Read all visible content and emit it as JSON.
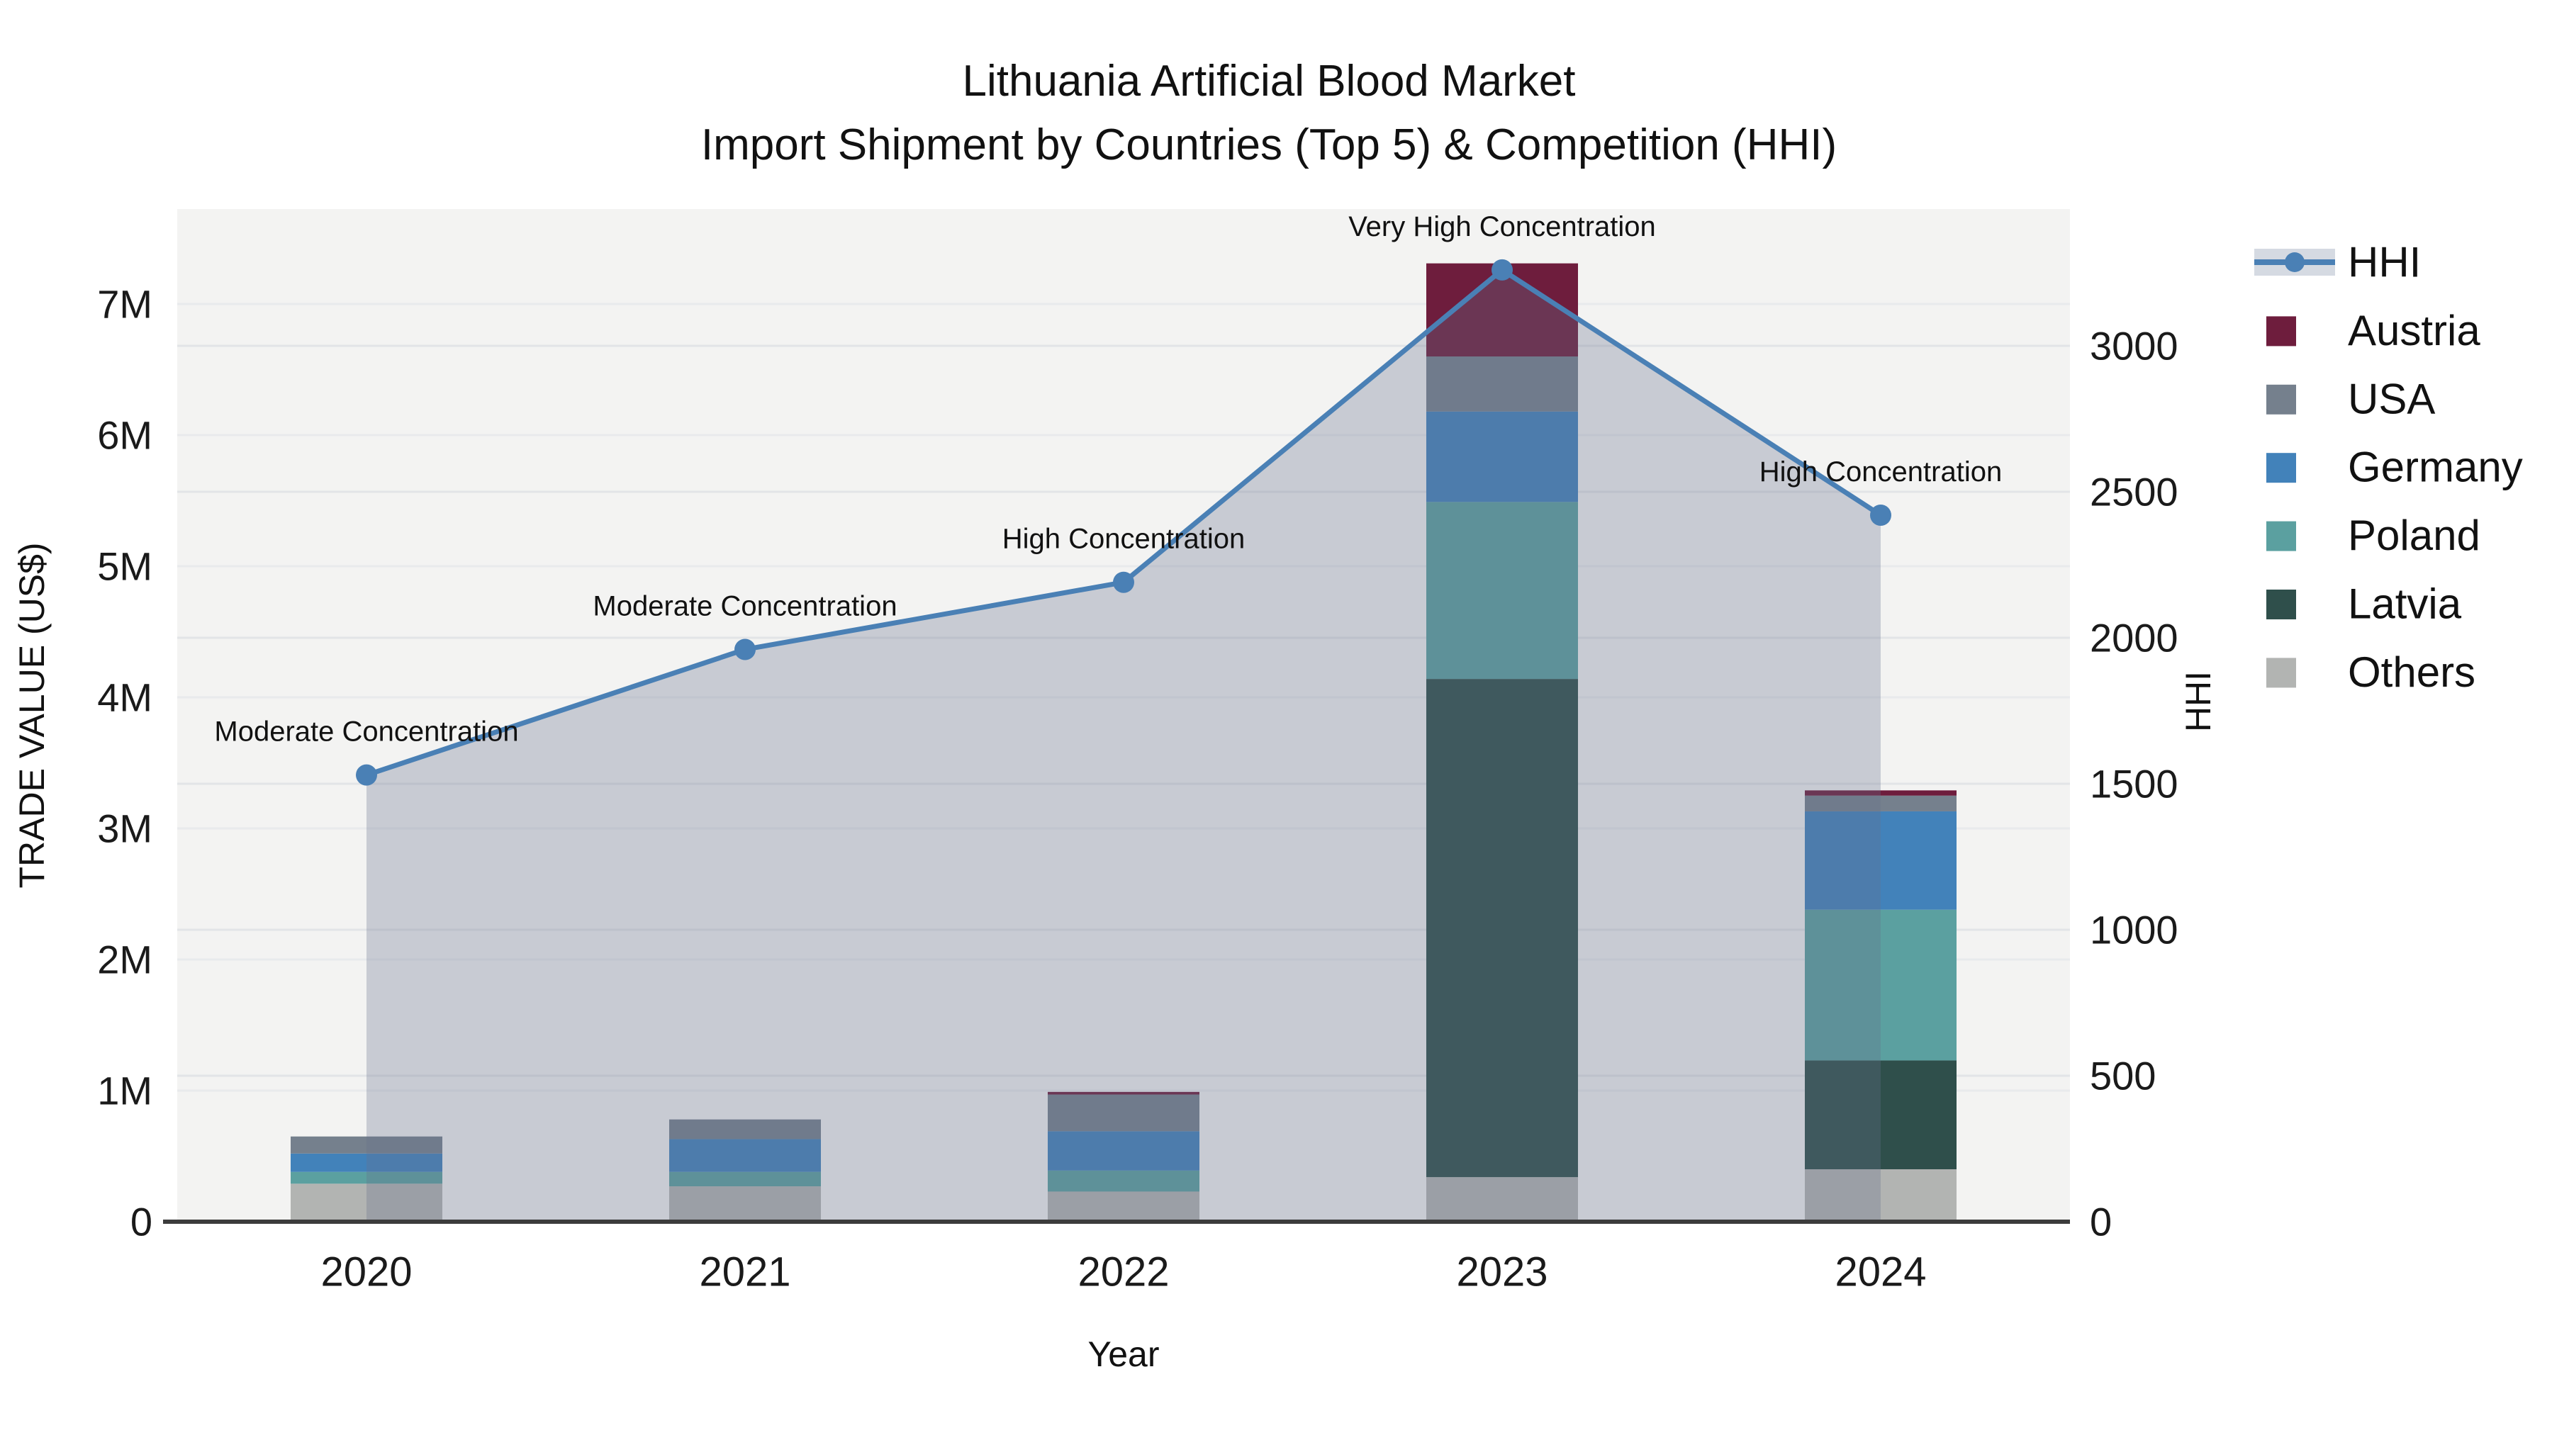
{
  "title": {
    "line1": "Lithuania Artificial Blood Market",
    "line2": "Import Shipment by Countries (Top 5) & Competition (HHI)"
  },
  "axes": {
    "x": {
      "title": "Year",
      "tick_labels": [
        "2020",
        "2021",
        "2022",
        "2023",
        "2024"
      ]
    },
    "y_left": {
      "title": "TRADE VALUE (US$)",
      "tick_labels": [
        "0",
        "1M",
        "2M",
        "3M",
        "4M",
        "5M",
        "6M",
        "7M"
      ],
      "tick_values_musd": [
        0,
        1,
        2,
        3,
        4,
        5,
        6,
        7
      ]
    },
    "y_right": {
      "title": "HHI",
      "tick_labels": [
        "0",
        "500",
        "1000",
        "1500",
        "2000",
        "2500",
        "3000"
      ],
      "tick_values": [
        0,
        500,
        1000,
        1500,
        2000,
        2500,
        3000
      ]
    }
  },
  "legend": {
    "items": [
      {
        "label": "HHI",
        "type": "line",
        "color": "#4a80b5"
      },
      {
        "label": "Austria",
        "type": "swatch",
        "color": "#6e1d3d"
      },
      {
        "label": "USA",
        "type": "swatch",
        "color": "#75808d"
      },
      {
        "label": "Germany",
        "type": "swatch",
        "color": "#4282ba"
      },
      {
        "label": "Poland",
        "type": "swatch",
        "color": "#5ba0a0"
      },
      {
        "label": "Latvia",
        "type": "swatch",
        "color": "#2f4f4b"
      },
      {
        "label": "Others",
        "type": "swatch",
        "color": "#b2b4b2"
      }
    ]
  },
  "chart_data": {
    "type": "bar",
    "subtype": "stacked-bars-with-secondary-axis-line",
    "title": "Lithuania Artificial Blood Market — Import Shipment by Countries (Top 5) & Competition (HHI)",
    "xlabel": "Year",
    "ylabel_left": "TRADE VALUE (US$)",
    "ylabel_right": "HHI",
    "categories": [
      "2020",
      "2021",
      "2022",
      "2023",
      "2024"
    ],
    "stack_order_bottom_to_top": [
      "Others",
      "Latvia",
      "Poland",
      "Germany",
      "USA",
      "Austria"
    ],
    "series": [
      {
        "name": "Austria",
        "values_musd": [
          0,
          0,
          0.02,
          0.71,
          0.04
        ],
        "color": "#6e1d3d"
      },
      {
        "name": "USA",
        "values_musd": [
          0.13,
          0.15,
          0.28,
          0.42,
          0.12
        ],
        "color": "#75808d"
      },
      {
        "name": "Germany",
        "values_musd": [
          0.14,
          0.25,
          0.3,
          0.69,
          0.75
        ],
        "color": "#4282ba"
      },
      {
        "name": "Poland",
        "values_musd": [
          0.09,
          0.11,
          0.16,
          1.35,
          1.15
        ],
        "color": "#5ba0a0"
      },
      {
        "name": "Latvia",
        "values_musd": [
          0,
          0,
          0,
          3.8,
          0.83
        ],
        "color": "#2f4f4b"
      },
      {
        "name": "Others",
        "values_musd": [
          0.29,
          0.27,
          0.23,
          0.34,
          0.4
        ],
        "color": "#b2b4b2"
      }
    ],
    "bar_totals_musd": [
      0.65,
      0.78,
      0.99,
      7.31,
      3.29
    ],
    "line": {
      "name": "HHI",
      "axis": "right",
      "values": [
        1530,
        1960,
        2190,
        3260,
        2420
      ],
      "color": "#4a80b5",
      "area_fill": "rgba(102,112,138,0.30)"
    },
    "annotations": [
      {
        "x": "2020",
        "text": "Moderate Concentration"
      },
      {
        "x": "2021",
        "text": "Moderate Concentration"
      },
      {
        "x": "2022",
        "text": "High Concentration"
      },
      {
        "x": "2023",
        "text": "Very High Concentration"
      },
      {
        "x": "2024",
        "text": "High Concentration"
      }
    ],
    "ylim_left_musd": [
      0,
      7.73
    ],
    "ylim_right": [
      0,
      3470
    ],
    "grid": true,
    "legend_position": "right",
    "plot_background": "#f3f3f2"
  }
}
